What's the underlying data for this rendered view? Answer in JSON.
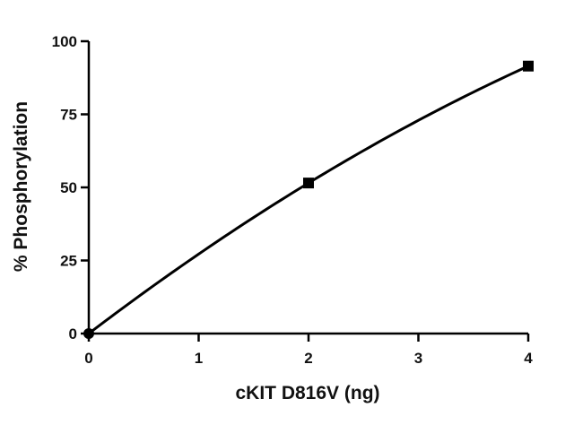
{
  "chart_data": {
    "type": "line",
    "title": "",
    "xlabel": "cKIT D816V (ng)",
    "ylabel": "% Phosphorylation",
    "xlim": [
      0,
      4
    ],
    "ylim": [
      0,
      100
    ],
    "x_ticks": [
      "0",
      "1",
      "2",
      "3",
      "4"
    ],
    "y_ticks": [
      "0",
      "25",
      "50",
      "75",
      "100"
    ],
    "grid": false,
    "legend": "none",
    "series": [
      {
        "points": [
          {
            "x": 0,
            "y": 0
          },
          {
            "x": 2,
            "y": 51.5
          },
          {
            "x": 4,
            "y": 91.5
          }
        ],
        "marker": "square",
        "color": "#000000"
      }
    ]
  }
}
